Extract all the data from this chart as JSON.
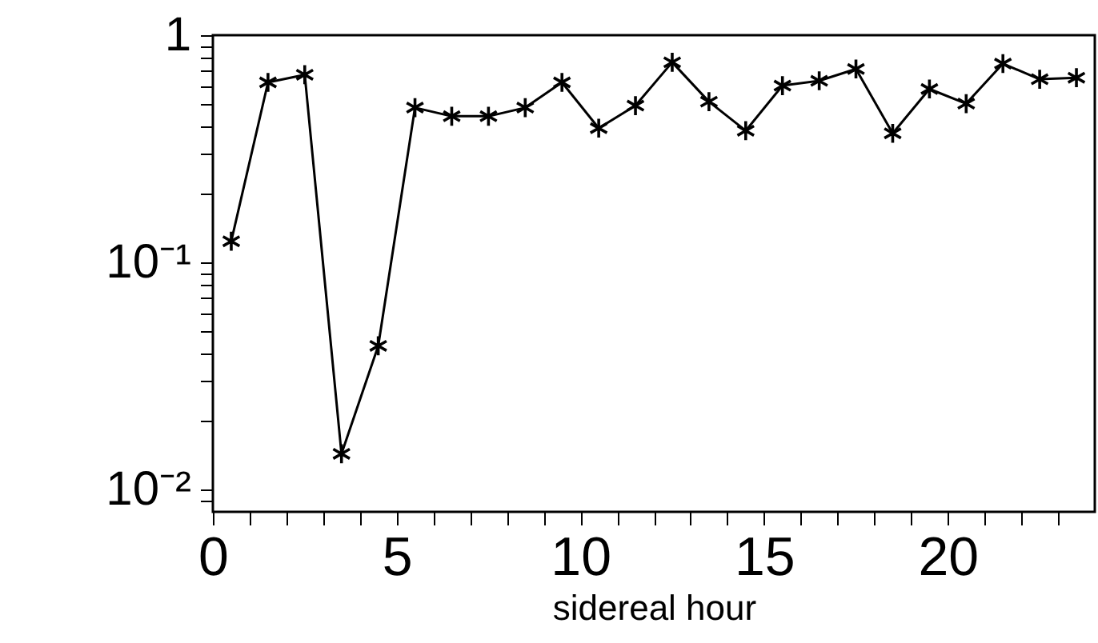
{
  "chart_data": {
    "type": "line",
    "xlabel": "sidereal hour",
    "log": true,
    "marker": "cross",
    "line_style": "solid",
    "grid": false,
    "legend": false,
    "x": [
      0.5,
      1.5,
      2.5,
      3.5,
      4.5,
      5.5,
      6.5,
      7.5,
      8.5,
      9.5,
      10.5,
      11.5,
      12.5,
      13.5,
      14.5,
      15.5,
      16.5,
      17.5,
      18.5,
      19.5,
      20.5,
      21.5,
      22.5,
      23.5
    ],
    "series": [
      {
        "color": "#000000",
        "values": [
          0.124,
          0.62,
          0.67,
          0.0144,
          0.043,
          0.48,
          0.44,
          0.44,
          0.48,
          0.62,
          0.39,
          0.49,
          0.76,
          0.51,
          0.38,
          0.6,
          0.63,
          0.71,
          0.37,
          0.58,
          0.5,
          0.75,
          0.64,
          0.65
        ]
      }
    ],
    "xlim": [
      0,
      24
    ],
    "ylim": [
      0.008,
      1
    ],
    "xticks": [
      0,
      {
        "value": 1,
        "label": null
      },
      {
        "value": 2,
        "label": null
      },
      {
        "value": 3,
        "label": null
      },
      {
        "value": 4,
        "label": null
      },
      5,
      {
        "value": 6,
        "label": null
      },
      {
        "value": 7,
        "label": null
      },
      {
        "value": 8,
        "label": null
      },
      {
        "value": 9,
        "label": null
      },
      10,
      {
        "value": 11,
        "label": null
      },
      {
        "value": 12,
        "label": null
      },
      {
        "value": 13,
        "label": null
      },
      {
        "value": 14,
        "label": null
      },
      15,
      {
        "value": 16,
        "label": null
      },
      {
        "value": 17,
        "label": null
      },
      {
        "value": 18,
        "label": null
      },
      {
        "value": 19,
        "label": null
      },
      20,
      {
        "value": 21,
        "label": null
      },
      {
        "value": 22,
        "label": null
      },
      {
        "value": 23,
        "label": null
      }
    ],
    "yticks": [
      {
        "value": 0.009,
        "label": null
      },
      {
        "value": 0.01,
        "label": "10⁻²"
      },
      {
        "value": 0.02,
        "label": null
      },
      {
        "value": 0.03,
        "label": null
      },
      {
        "value": 0.04,
        "label": null
      },
      {
        "value": 0.05,
        "label": null
      },
      {
        "value": 0.06,
        "label": null
      },
      {
        "value": 0.07,
        "label": null
      },
      {
        "value": 0.08,
        "label": null
      },
      {
        "value": 0.09,
        "label": null
      },
      {
        "value": 0.1,
        "label": "10⁻¹"
      },
      {
        "value": 0.2,
        "label": null
      },
      {
        "value": 0.3,
        "label": null
      },
      {
        "value": 0.4,
        "label": null
      },
      {
        "value": 0.5,
        "label": null
      },
      {
        "value": 0.6,
        "label": null
      },
      {
        "value": 0.7,
        "label": null
      },
      {
        "value": 0.8,
        "label": null
      },
      {
        "value": 0.9,
        "label": null
      },
      1
    ]
  }
}
